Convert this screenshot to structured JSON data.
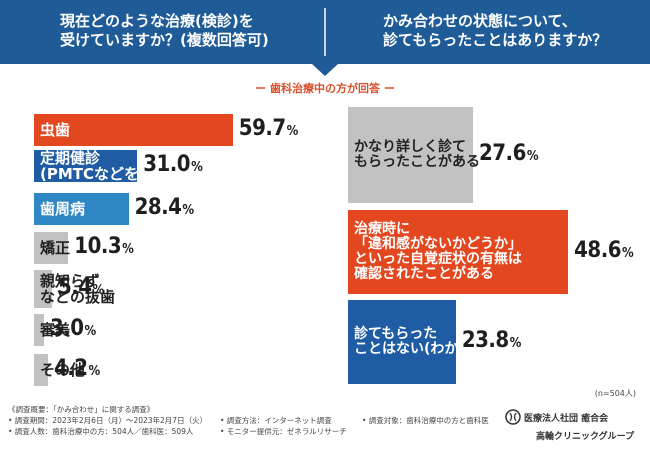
{
  "header": {
    "left_question": "現在どのような治療(検診)を\n受けていますか？(複数回答可)",
    "right_question": "かみ合わせの状態について、\n診てもらったことはありますか？"
  },
  "subtitle": "ー 歯科治療中の方が回答 ー",
  "colors": {
    "header": "#1e5b97",
    "orange": "#e2471f",
    "blue_dark": "#1f5ca3",
    "blue_mid": "#2f86c4",
    "gray": "#c2c2c2"
  },
  "chart_data": [
    {
      "type": "bar",
      "title": "現在どのような治療(検診)を受けていますか？(複数回答可)",
      "categories": [
        "虫歯",
        "定期健診\n(PMTCなどを含む)",
        "歯周病",
        "矯正",
        "親知らず\nなどの抜歯",
        "審美",
        "その他"
      ],
      "values": [
        59.7,
        31.0,
        28.4,
        10.3,
        5.4,
        3.0,
        4.2
      ],
      "value_labels": [
        "59.7",
        "31.0",
        "28.4",
        "10.3",
        "5.4",
        "3.0",
        "4.2"
      ],
      "unit": "%",
      "bar_colors": [
        "#e2471f",
        "#1f5ca3",
        "#2f86c4",
        "#c2c2c2",
        "#c2c2c2",
        "#c2c2c2",
        "#c2c2c2"
      ],
      "label_colors": [
        "#ffffff",
        "#ffffff",
        "#ffffff",
        "#222222",
        "#222222",
        "#222222",
        "#222222"
      ]
    },
    {
      "type": "bar",
      "title": "かみ合わせの状態について、診てもらったことはありますか？",
      "categories": [
        "かなり詳しく診て\nもらったことがある",
        "治療時に\n「違和感がないかどうか」\nといった自覚症状の有無は\n確認されたことがある",
        "診てもらった\nことはない(わからない)"
      ],
      "values": [
        27.6,
        48.6,
        23.8
      ],
      "value_labels": [
        "27.6",
        "48.6",
        "23.8"
      ],
      "unit": "%",
      "bar_colors": [
        "#c2c2c2",
        "#e2471f",
        "#1f5ca3"
      ],
      "label_colors": [
        "#222222",
        "#ffffff",
        "#ffffff"
      ]
    }
  ],
  "n_note": "(n=504人)",
  "footer": {
    "line1": "《調査概要：「かみ合わせ」に関する調査》",
    "line2": "• 調査期間：2023年2月6日（月）～2023年2月7日（火）",
    "line3": "• 調査人数：歯科治療中の方：504人／歯科医：509人",
    "line4": "• 調査方法：インターネット調査",
    "line5": "• モニター提供元：ゼネラルリサーチ",
    "line6": "• 調査対象：歯科治療中の方と歯科医"
  },
  "org": {
    "line1": "医療法人社団 癒合会",
    "line2": "高輪クリニックグループ"
  }
}
